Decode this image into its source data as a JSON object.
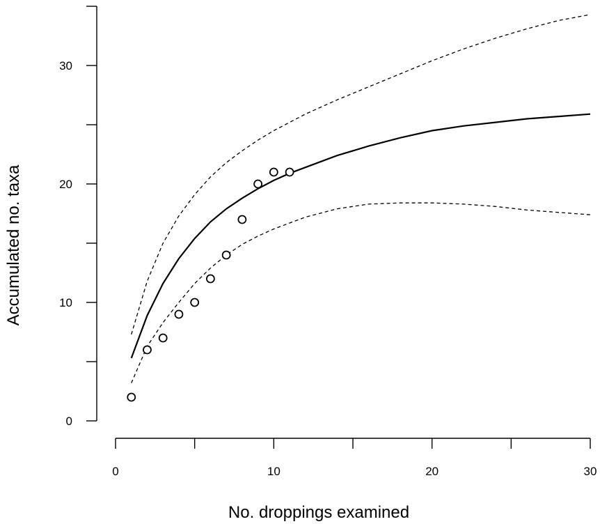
{
  "chart_data": {
    "type": "scatter",
    "title": "",
    "xlabel": "No. droppings examined",
    "ylabel": "Accumulated no. taxa",
    "xlim": [
      0,
      30
    ],
    "ylim": [
      0,
      35
    ],
    "xticks": [
      0,
      5,
      10,
      15,
      20,
      25,
      30
    ],
    "xtick_labels": [
      "0",
      "",
      "10",
      "",
      "20",
      "",
      "30"
    ],
    "yticks": [
      0,
      5,
      10,
      15,
      20,
      25,
      30,
      35
    ],
    "ytick_labels": [
      "0",
      "",
      "10",
      "",
      "20",
      "",
      "30",
      ""
    ],
    "grid": false,
    "legend": "none",
    "points": {
      "x": [
        1,
        2,
        3,
        4,
        5,
        6,
        7,
        8,
        9,
        10,
        11
      ],
      "y": [
        2,
        6,
        7,
        9,
        10,
        12,
        14,
        17,
        20,
        21,
        21
      ]
    },
    "series": [
      {
        "style": "solid",
        "x": [
          1,
          2,
          3,
          4,
          5,
          6,
          7,
          8,
          9,
          10,
          11,
          12,
          14,
          16,
          18,
          20,
          22,
          24,
          26,
          28,
          30
        ],
        "y": [
          5.3,
          8.9,
          11.6,
          13.7,
          15.4,
          16.8,
          17.9,
          18.8,
          19.6,
          20.3,
          20.9,
          21.4,
          22.4,
          23.2,
          23.9,
          24.5,
          24.9,
          25.2,
          25.5,
          25.7,
          25.9
        ]
      },
      {
        "style": "dashed",
        "x": [
          1,
          2,
          3,
          4,
          5,
          6,
          7,
          8,
          9,
          10,
          12,
          14,
          16,
          18,
          20,
          22,
          24,
          26,
          28,
          30
        ],
        "y": [
          7.3,
          11.8,
          15.0,
          17.3,
          19.1,
          20.6,
          21.8,
          22.8,
          23.7,
          24.5,
          25.9,
          27.1,
          28.2,
          29.3,
          30.4,
          31.4,
          32.3,
          33.1,
          33.8,
          34.3
        ]
      },
      {
        "style": "dashed",
        "x": [
          1,
          2,
          3,
          4,
          5,
          6,
          7,
          8,
          9,
          10,
          12,
          14,
          16,
          18,
          20,
          22,
          24,
          26,
          28,
          30
        ],
        "y": [
          3.2,
          6.3,
          8.3,
          10.0,
          11.6,
          12.9,
          14.0,
          14.9,
          15.6,
          16.2,
          17.2,
          17.9,
          18.3,
          18.4,
          18.4,
          18.3,
          18.1,
          17.8,
          17.6,
          17.4
        ]
      }
    ]
  }
}
